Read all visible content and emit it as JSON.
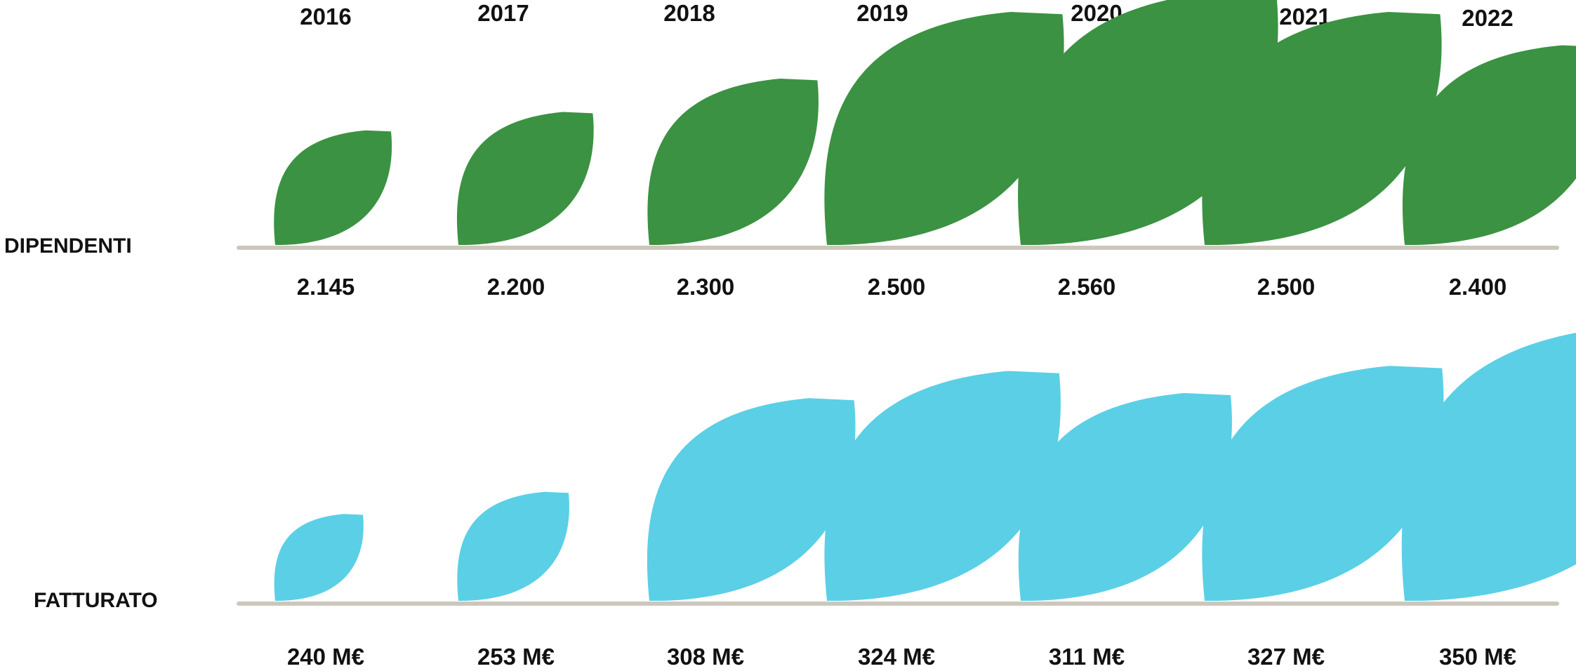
{
  "chart_data": {
    "type": "bar",
    "categories": [
      "2016",
      "2017",
      "2018",
      "2019",
      "2020",
      "2021",
      "2022"
    ],
    "series": [
      {
        "name": "DIPENDENTI",
        "values": [
          2145,
          2200,
          2300,
          2500,
          2560,
          2500,
          2400
        ],
        "value_labels": [
          "2.145",
          "2.200",
          "2.300",
          "2.500",
          "2.560",
          "2.500",
          "2.400"
        ],
        "color": "#3b9242"
      },
      {
        "name": "FATTURATO",
        "values": [
          240,
          253,
          308,
          324,
          311,
          327,
          350
        ],
        "unit": "M€",
        "value_labels": [
          "240 M€",
          "253 M€",
          "308 M€",
          "324 M€",
          "311 M€",
          "327 M€",
          "350 M€"
        ],
        "color": "#5bcfe6"
      }
    ],
    "baseline_color": "#cdc6bd",
    "grid": false,
    "legend": "none"
  }
}
